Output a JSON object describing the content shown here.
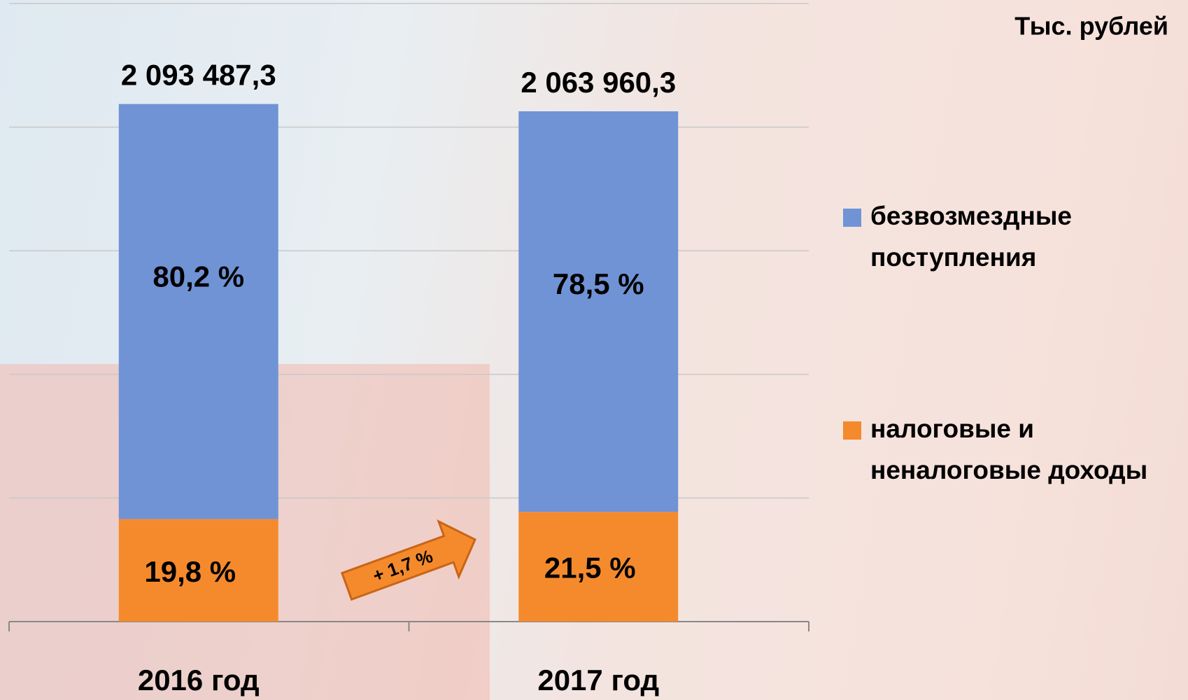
{
  "chart_data": {
    "type": "stacked_bar",
    "unit_label": "Тыс. рублей",
    "categories": [
      "2016 год",
      "2017 год"
    ],
    "series": [
      {
        "name": "налоговые и неналоговые доходы",
        "color": "#f58a2d",
        "values": [
          414510.5,
          443751.5
        ],
        "value_labels": [
          "19,8 %",
          "21,5 %"
        ]
      },
      {
        "name": "безвозмездные поступления",
        "color": "#7093d6",
        "values": [
          1678976.8,
          1620208.8
        ],
        "value_labels": [
          "80,2 %",
          "78,5 %"
        ]
      }
    ],
    "total_labels": [
      "2 093 487,3",
      "2 063 960,3"
    ],
    "annotation": "+ 1,7 %",
    "ylim": [
      0,
      2500000
    ],
    "yticks": [
      0,
      500000,
      1000000,
      1500000,
      2000000,
      2500000
    ],
    "grid": true,
    "legend": "right"
  }
}
